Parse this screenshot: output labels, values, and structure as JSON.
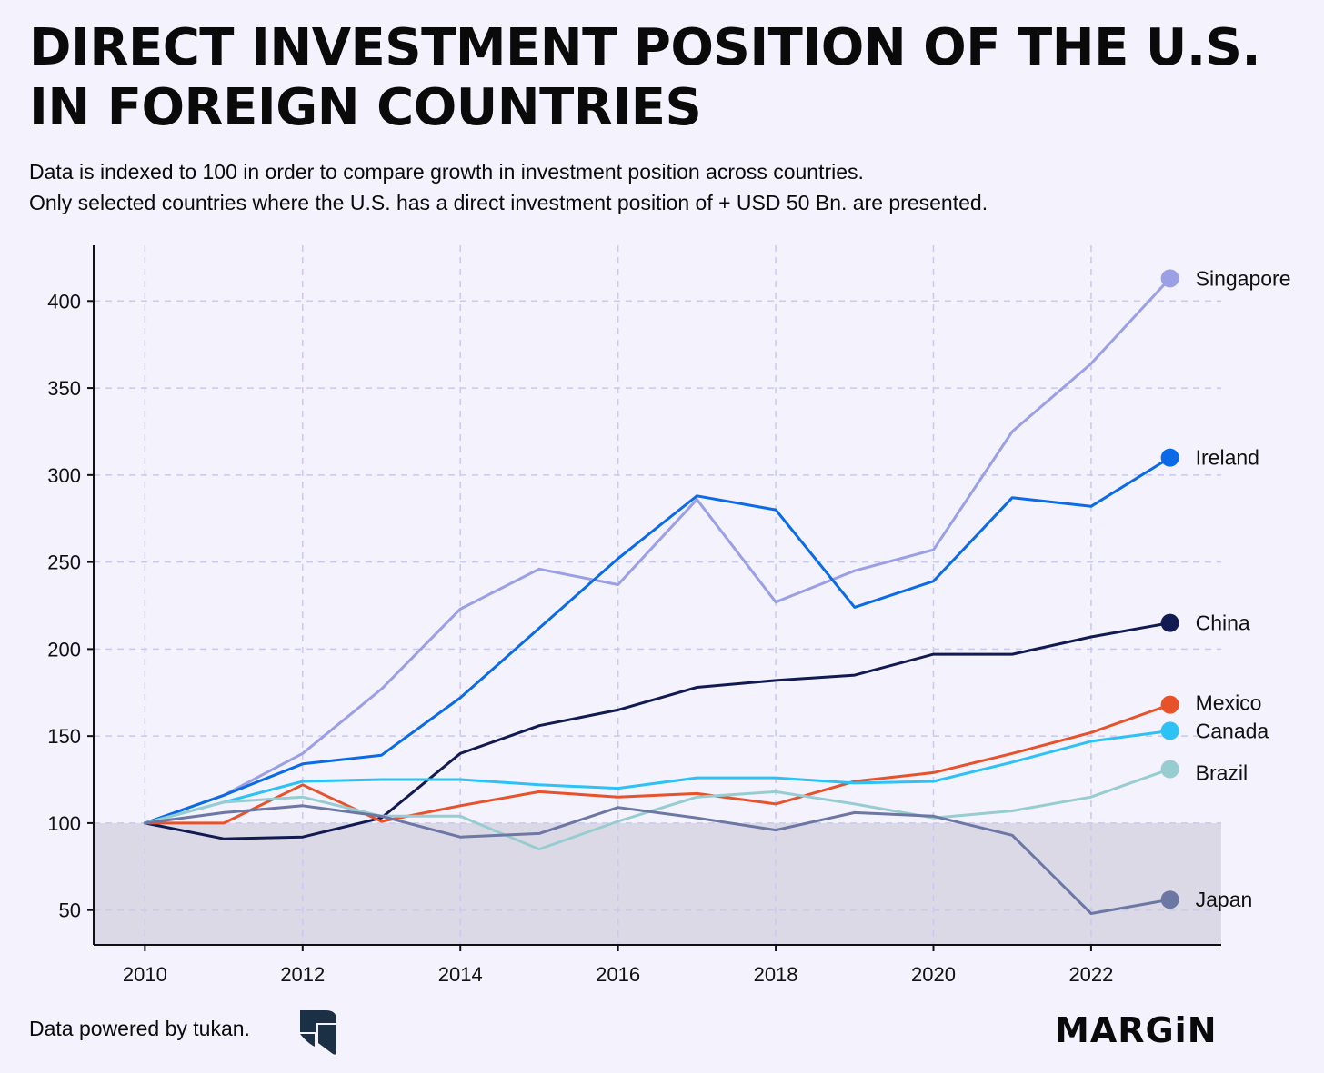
{
  "header": {
    "title_line1": "DIRECT INVESTMENT POSITION OF THE U.S.",
    "title_line2": "IN FOREIGN COUNTRIES",
    "subtitle_line1": "Data is indexed to 100 in order to compare growth in investment position across countries.",
    "subtitle_line2": "Only selected countries where the U.S. has a direct investment position of + USD 50 Bn. are presented."
  },
  "footer": {
    "source": "Data powered by tukan.",
    "source_logo_icon": "tukan-logo-icon",
    "brand": "MARGiN"
  },
  "chart_data": {
    "type": "line",
    "title": "DIRECT INVESTMENT POSITION OF THE U.S. IN FOREIGN COUNTRIES",
    "xlabel": "",
    "ylabel": "",
    "x": [
      2010,
      2011,
      2012,
      2013,
      2014,
      2015,
      2016,
      2017,
      2018,
      2019,
      2020,
      2021,
      2022,
      2023
    ],
    "xlim": [
      2009.35,
      2023.65
    ],
    "ylim": [
      30,
      432
    ],
    "x_ticks": [
      2010,
      2012,
      2014,
      2016,
      2018,
      2020,
      2022
    ],
    "y_ticks": [
      50,
      100,
      150,
      200,
      250,
      300,
      350,
      400
    ],
    "grid": true,
    "grid_style": "dashed",
    "baseline": 100,
    "baseline_shading": true,
    "legend_placement": "end-of-line labels",
    "colors": {
      "background": "#f3f2fd",
      "grid": "#c9c9f2",
      "shade": "#dcd9e7",
      "axis": "#111111"
    },
    "series": [
      {
        "name": "Singapore",
        "color": "#9b9fe6",
        "values": [
          100,
          116,
          140,
          177,
          223,
          246,
          237,
          286,
          227,
          245,
          257,
          325,
          364,
          413
        ]
      },
      {
        "name": "Ireland",
        "color": "#0b6be6",
        "values": [
          100,
          116,
          134,
          139,
          172,
          212,
          252,
          288,
          280,
          224,
          239,
          287,
          282,
          310
        ]
      },
      {
        "name": "China",
        "color": "#121a52",
        "values": [
          100,
          91,
          92,
          103,
          140,
          156,
          165,
          178,
          182,
          185,
          197,
          197,
          207,
          215
        ]
      },
      {
        "name": "Mexico",
        "color": "#e8522a",
        "values": [
          100,
          100,
          122,
          101,
          110,
          118,
          115,
          117,
          111,
          124,
          129,
          140,
          152,
          168
        ]
      },
      {
        "name": "Canada",
        "color": "#2cc2f5",
        "values": [
          100,
          112,
          124,
          125,
          125,
          122,
          120,
          126,
          126,
          123,
          124,
          135,
          147,
          153
        ]
      },
      {
        "name": "Brazil",
        "color": "#97cdd0",
        "values": [
          100,
          112,
          115,
          104,
          104,
          85,
          101,
          115,
          118,
          111,
          103,
          107,
          115,
          131
        ]
      },
      {
        "name": "Japan",
        "color": "#6d77a3",
        "values": [
          100,
          106,
          110,
          104,
          92,
          94,
          109,
          103,
          96,
          106,
          104,
          93,
          48,
          56
        ]
      }
    ]
  }
}
